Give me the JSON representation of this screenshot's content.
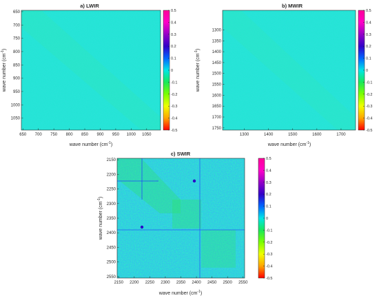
{
  "chart_data": [
    {
      "type": "heatmap",
      "title": "a) LWIR",
      "xlabel": "wave number (cm",
      "ylabel": "wave number (cm",
      "label_superscript": "-1",
      "label_close": ")",
      "x_ticks": [
        650,
        700,
        750,
        800,
        850,
        900,
        950,
        1000,
        1050
      ],
      "y_ticks": [
        650,
        700,
        750,
        800,
        850,
        900,
        950,
        1000,
        1050
      ],
      "xlim": [
        645,
        1095
      ],
      "ylim": [
        645,
        1095
      ],
      "y_reversed": true,
      "colorbar": {
        "range": [
          -0.5,
          0.5
        ],
        "ticks": [
          "0.5",
          "0.4",
          "0.3",
          "0.2",
          "0.1",
          "0",
          "-0.1",
          "-0.2",
          "-0.3",
          "-0.4",
          "-0.5"
        ]
      },
      "background_color": "#22e6d4",
      "structure": "near-zero noise with faint diagonal band"
    },
    {
      "type": "heatmap",
      "title": "b) MWIR",
      "xlabel": "wave number (cm",
      "ylabel": "wave number (cm",
      "label_superscript": "-1",
      "label_close": ")",
      "x_ticks": [
        1300,
        1400,
        1500,
        1600,
        1700
      ],
      "y_ticks": [
        1300,
        1350,
        1400,
        1450,
        1500,
        1550,
        1600,
        1650,
        1700,
        1750
      ],
      "xlim": [
        1210,
        1760
      ],
      "ylim": [
        1210,
        1760
      ],
      "y_reversed": true,
      "colorbar": {
        "range": [
          -0.5,
          0.5
        ],
        "ticks": [
          "0.5",
          "0.4",
          "0.3",
          "0.2",
          "0.1",
          "0",
          "-0.1",
          "-0.2",
          "-0.3",
          "-0.4",
          "-0.5"
        ]
      },
      "background_color": "#22e6d4",
      "structure": "near-zero noise with faint diagonal band"
    },
    {
      "type": "heatmap",
      "title": "c) SWIR",
      "xlabel": "wave number (cm",
      "ylabel": "wave number (cm",
      "label_superscript": "-1",
      "label_close": ")",
      "x_ticks": [
        2150,
        2200,
        2250,
        2300,
        2350,
        2400,
        2450,
        2500,
        2550
      ],
      "y_ticks": [
        2150,
        2200,
        2250,
        2300,
        2350,
        2400,
        2450,
        2500,
        2550
      ],
      "xlim": [
        2145,
        2555
      ],
      "ylim": [
        2145,
        2555
      ],
      "y_reversed": true,
      "colorbar": {
        "range": [
          -0.5,
          0.5
        ],
        "ticks": [
          "0.5",
          "0.4",
          "0.3",
          "0.2",
          "0.1",
          "0",
          "-0.1",
          "-0.2",
          "-0.3",
          "-0.4",
          "-0.5"
        ]
      },
      "background_color": "#22e6d4",
      "structure": "noisy with green diagonal blocks and blue lines near 2230 and 2385"
    }
  ],
  "colors": {
    "colormap": [
      "#ff0000",
      "#ffa500",
      "#f0ff00",
      "#7bff00",
      "#19e85a",
      "#00e6e6",
      "#0066ff",
      "#3200c8",
      "#9600c8",
      "#ff00c8",
      "#ff0099"
    ],
    "matrix_base": "#22e6d4",
    "text": "#262626"
  }
}
